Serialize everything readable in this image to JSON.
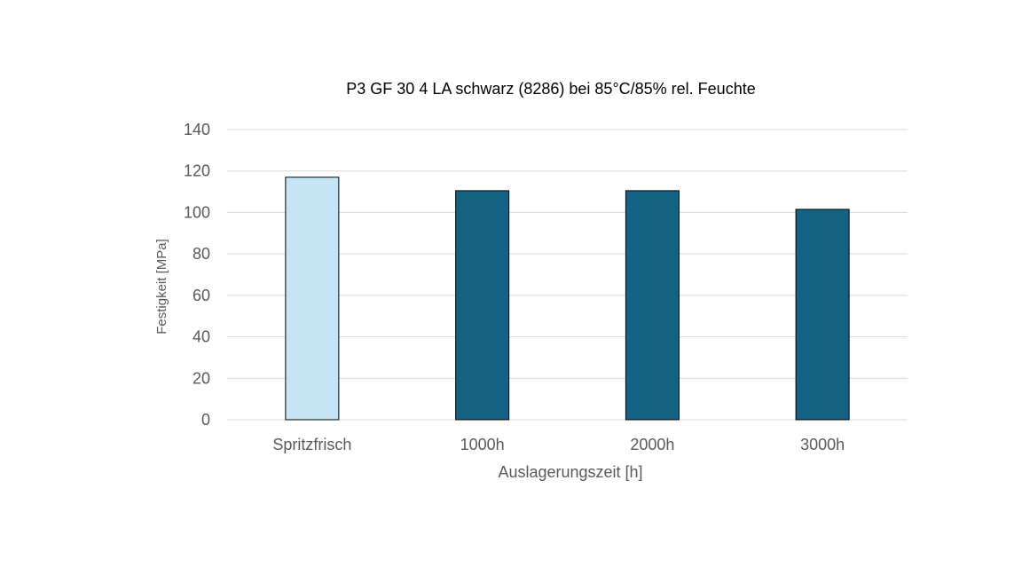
{
  "chart_data": {
    "type": "bar",
    "title": "P3 GF 30 4 LA schwarz (8286) bei 85°C/85% rel. Feuchte",
    "xlabel": "Auslagerungszeit [h]",
    "ylabel": "Festigkeit [MPa]",
    "categories": [
      "Spritzfrisch",
      "1000h",
      "2000h",
      "3000h"
    ],
    "values": [
      117,
      110.5,
      110.5,
      101.5
    ],
    "ylim": [
      0,
      140
    ],
    "yticks": [
      "0",
      "20",
      "40",
      "60",
      "80",
      "100",
      "120",
      "140"
    ],
    "grid": true,
    "legend": "none",
    "colors": {
      "bars": [
        "#c5e4f5",
        "#166282",
        "#166282",
        "#166282"
      ],
      "bar_outline": "#000000",
      "grid": "#d9d9d9",
      "tick_text": "#595959"
    }
  }
}
